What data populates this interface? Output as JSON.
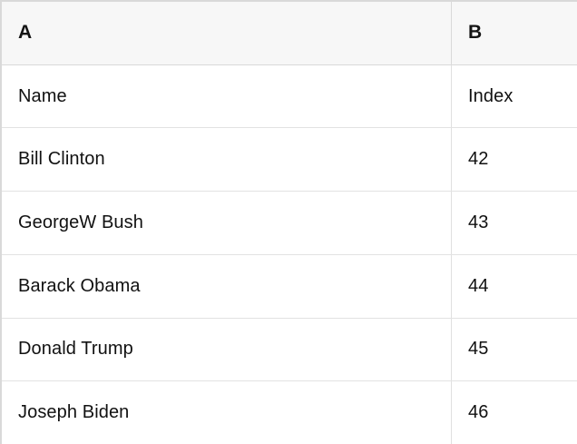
{
  "table": {
    "columns": [
      "A",
      "B"
    ],
    "rows": [
      [
        "Name",
        "Index"
      ],
      [
        "Bill Clinton",
        "42"
      ],
      [
        "GeorgeW Bush",
        "43"
      ],
      [
        "Barack Obama",
        "44"
      ],
      [
        "Donald Trump",
        "45"
      ],
      [
        "Joseph Biden",
        "46"
      ]
    ]
  },
  "colors": {
    "header_background": "#f7f7f7",
    "header_border": "#d9d9d9",
    "row_border": "#e2e2e2",
    "text": "#111111",
    "cell_background": "#ffffff"
  }
}
